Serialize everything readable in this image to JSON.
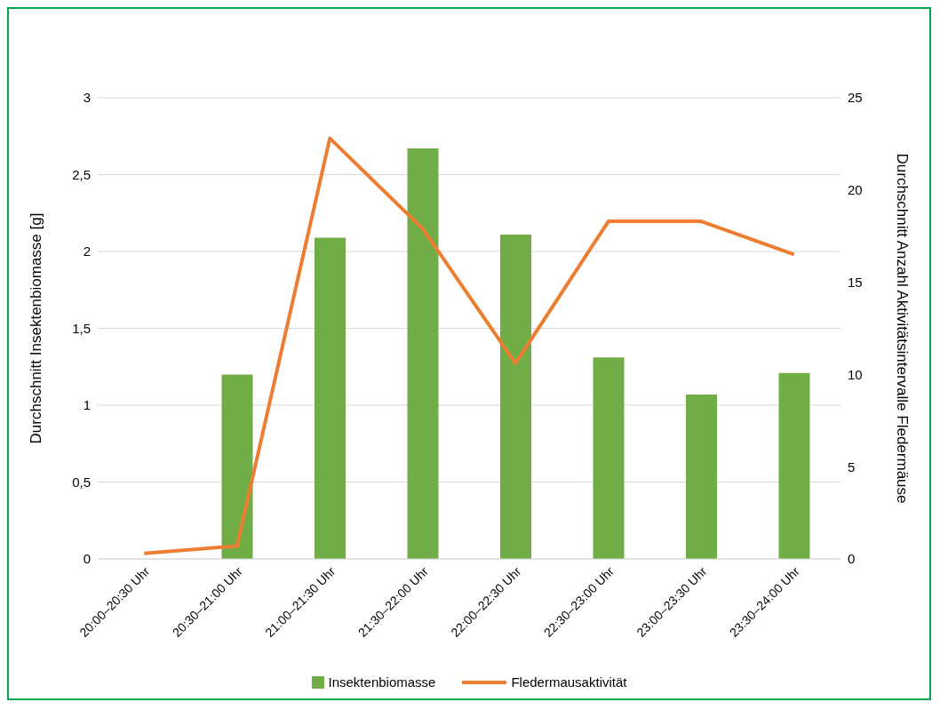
{
  "chart_data": {
    "type": "bar",
    "categories": [
      "20:00–20:30 Uhr",
      "20:30–21:00 Uhr",
      "21:00–21:30 Uhr",
      "21:30–22:00 Uhr",
      "22:00–22:30 Uhr",
      "22:30–23:00 Uhr",
      "23:00–23:30 Uhr",
      "23:30–24:00 Uhr"
    ],
    "series": [
      {
        "name": "Insektenbiomasse",
        "color": "#70ad47",
        "values": [
          0,
          1.2,
          2.09,
          2.67,
          2.11,
          1.31,
          1.07,
          1.21
        ]
      },
      {
        "name": "Fledermausaktivität",
        "type": "line",
        "axis": "y2",
        "color": "#ed7d31",
        "values": [
          0.3,
          0.7,
          22.8,
          17.9,
          10.6,
          18.3,
          18.3,
          16.5
        ]
      }
    ],
    "ylabel": "Durchschnitt Insektenbiomasse [g]",
    "y2label": "Durchschnitt Anzahl Aktivitätsintervalle Fledermäuse",
    "ylim": [
      0,
      3
    ],
    "yticks": [
      0,
      {
        "value": 0.5,
        "label": "0,5"
      },
      1,
      {
        "value": 1.5,
        "label": "1,5"
      },
      2,
      {
        "value": 2.5,
        "label": "2,5"
      },
      3
    ],
    "y2lim": [
      0,
      25
    ],
    "y2ticks": [
      0,
      5,
      10,
      15,
      20,
      25
    ],
    "grid": "y",
    "legend": "bottom",
    "marker": "none",
    "line_style": "solid"
  }
}
